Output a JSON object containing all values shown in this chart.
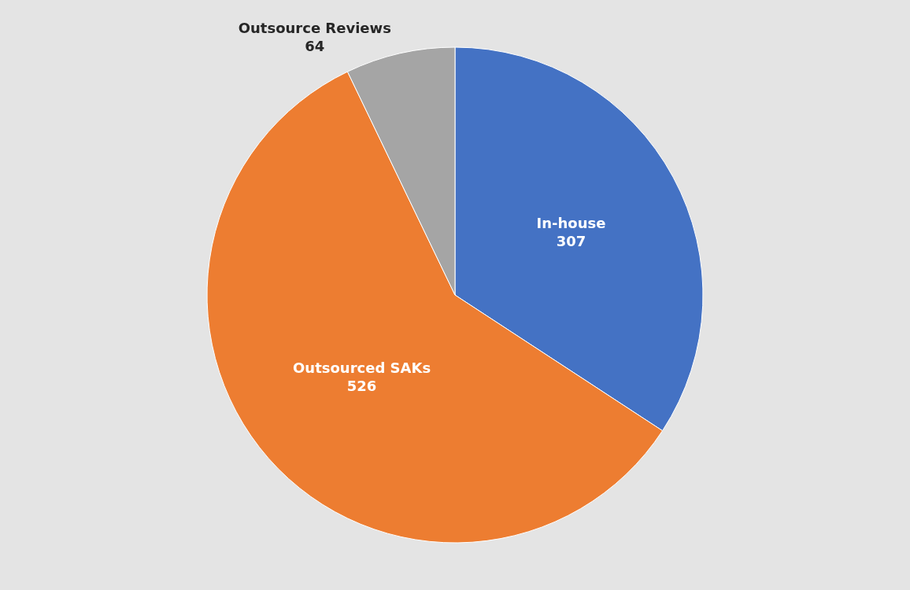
{
  "chart_data": {
    "type": "pie",
    "categories": [
      "In-house",
      "Outsourced SAKs",
      "Outsource Reviews"
    ],
    "values": [
      307,
      526,
      64
    ],
    "colors": [
      "#4472c4",
      "#ed7d31",
      "#a5a5a5"
    ],
    "data_labels": true
  }
}
